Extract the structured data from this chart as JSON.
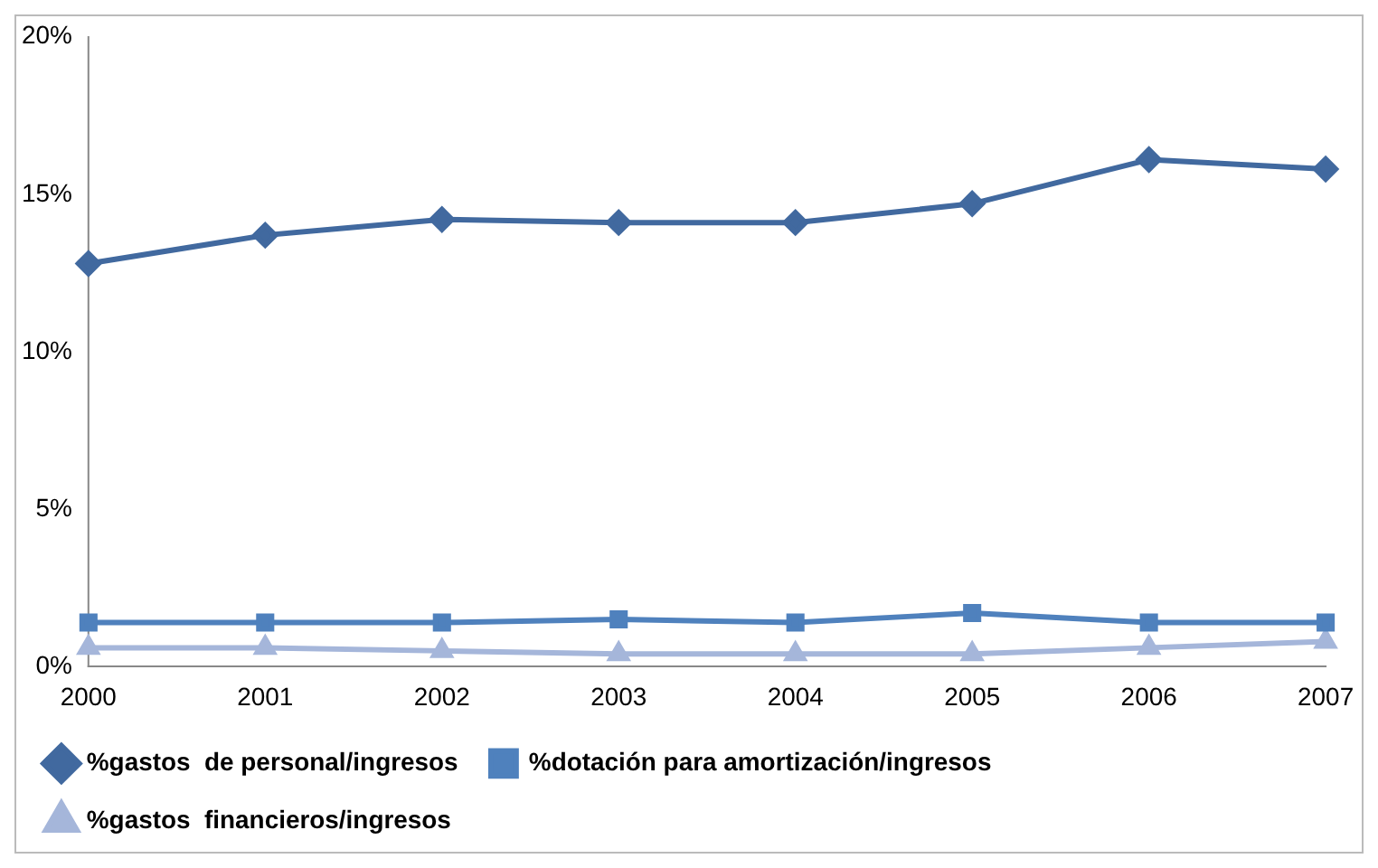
{
  "chart_data": {
    "type": "line",
    "categories": [
      "2000",
      "2001",
      "2002",
      "2003",
      "2004",
      "2005",
      "2006",
      "2007"
    ],
    "series": [
      {
        "name": "%gastos  de personal/ingresos",
        "color": "#41699f",
        "marker": "diamond",
        "values": [
          12.8,
          13.7,
          14.2,
          14.1,
          14.1,
          14.7,
          16.1,
          15.8
        ]
      },
      {
        "name": "%dotación para amortización/ingresos",
        "color": "#4f81bd",
        "marker": "square",
        "values": [
          1.4,
          1.4,
          1.4,
          1.5,
          1.4,
          1.7,
          1.4,
          1.4
        ]
      },
      {
        "name": "%gastos  financieros/ingresos",
        "color": "#a5b6da",
        "marker": "triangle",
        "values": [
          0.6,
          0.6,
          0.5,
          0.4,
          0.4,
          0.4,
          0.6,
          0.8
        ]
      }
    ],
    "ylim": [
      0,
      20
    ],
    "yticks": [
      {
        "value": 0,
        "label": "0%"
      },
      {
        "value": 5,
        "label": "5%"
      },
      {
        "value": 10,
        "label": "10%"
      },
      {
        "value": 15,
        "label": "15%"
      },
      {
        "value": 20,
        "label": "20%"
      }
    ],
    "grid": false,
    "legend": "bottom",
    "line_style": "solid"
  }
}
